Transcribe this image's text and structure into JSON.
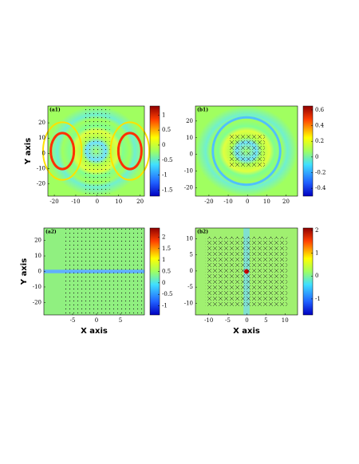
{
  "chart_data": [
    {
      "type": "heatmap",
      "panel_label": "(a1)",
      "ylabel": "Y axis",
      "xlim": [
        -23,
        22
      ],
      "xticks": [
        -20,
        -10,
        0,
        10,
        20
      ],
      "ylim": [
        -28,
        31
      ],
      "yticks": [
        20,
        10,
        0,
        -10,
        -20
      ],
      "clim": [
        -1.7,
        1.3
      ],
      "cticks": [
        1,
        0.5,
        0,
        -0.5,
        -1,
        -1.5
      ]
    },
    {
      "type": "heatmap",
      "panel_label": "(b1)",
      "xlim": [
        -27,
        26
      ],
      "xticks": [
        -20,
        -10,
        0,
        10,
        20
      ],
      "ylim": [
        -25,
        29
      ],
      "yticks": [
        20,
        10,
        0,
        -10,
        -20
      ],
      "clim": [
        -0.5,
        0.65
      ],
      "cticks": [
        0.6,
        0.4,
        0.2,
        0,
        -0.2,
        -0.4
      ]
    },
    {
      "type": "heatmap",
      "panel_label": "(a2)",
      "ylabel": "Y axis",
      "xlabel": "X axis",
      "xlim": [
        -11,
        10
      ],
      "xticks": [
        -5,
        0,
        5
      ],
      "ylim": [
        -28,
        28
      ],
      "yticks": [
        20,
        10,
        0,
        -10,
        -20
      ],
      "clim": [
        -1.4,
        2.4
      ],
      "cticks": [
        2,
        1.5,
        1,
        0.5,
        0,
        -0.5,
        -1
      ]
    },
    {
      "type": "heatmap",
      "panel_label": "(b2)",
      "xlabel": "X axis",
      "xlim": [
        -13.5,
        13.3
      ],
      "xticks": [
        -10,
        -5,
        0,
        5,
        10
      ],
      "ylim": [
        -13.6,
        13.3
      ],
      "yticks": [
        10,
        5,
        0,
        -5,
        -10
      ],
      "clim": [
        -1.7,
        2.1
      ],
      "cticks": [
        2,
        1,
        0,
        -1
      ]
    }
  ]
}
